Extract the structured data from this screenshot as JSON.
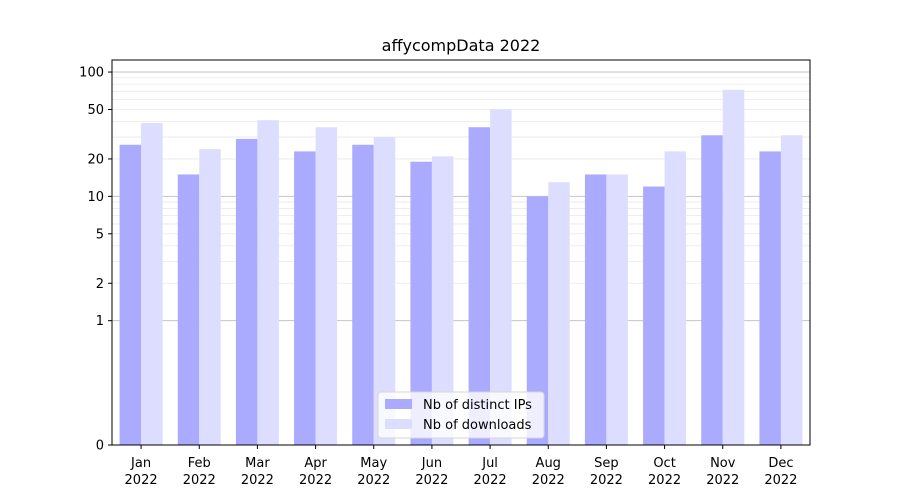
{
  "chart_data": {
    "type": "bar",
    "title": "affycompData 2022",
    "xlabel": "",
    "ylabel": "",
    "yscale": "symlog",
    "ylim": [
      0,
      125
    ],
    "yticks": [
      0,
      1,
      2,
      5,
      10,
      20,
      50,
      100
    ],
    "categories": [
      [
        "Jan",
        "2022"
      ],
      [
        "Feb",
        "2022"
      ],
      [
        "Mar",
        "2022"
      ],
      [
        "Apr",
        "2022"
      ],
      [
        "May",
        "2022"
      ],
      [
        "Jun",
        "2022"
      ],
      [
        "Jul",
        "2022"
      ],
      [
        "Aug",
        "2022"
      ],
      [
        "Sep",
        "2022"
      ],
      [
        "Oct",
        "2022"
      ],
      [
        "Nov",
        "2022"
      ],
      [
        "Dec",
        "2022"
      ]
    ],
    "series": [
      {
        "name": "Nb of distinct IPs",
        "color": "#aaaaff",
        "values": [
          26,
          15,
          29,
          23,
          26,
          19,
          36,
          10,
          15,
          12,
          31,
          23
        ]
      },
      {
        "name": "Nb of downloads",
        "color": "#ddddff",
        "values": [
          39,
          24,
          41,
          36,
          30,
          21,
          50,
          13,
          15,
          23,
          72,
          31
        ]
      }
    ],
    "grid": true,
    "legend_position": "bottom-center"
  }
}
